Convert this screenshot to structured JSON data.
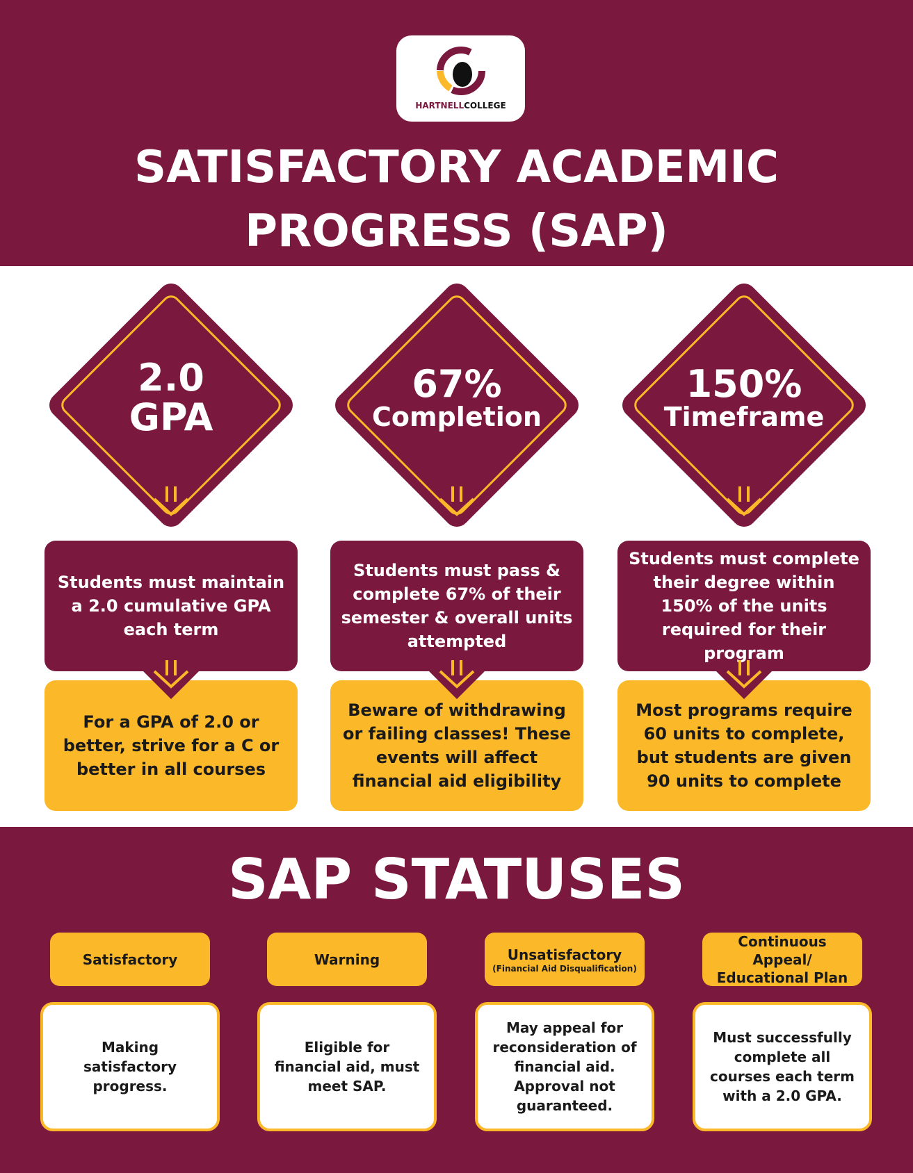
{
  "header": {
    "logo": {
      "name_first": "HARTNELL",
      "name_second": "COLLEGE"
    },
    "title_lines": [
      "SATISFACTORY ACADEMIC",
      "PROGRESS (SAP)"
    ]
  },
  "pillars": [
    {
      "headline": "2.0",
      "subhead": "GPA",
      "description": "Students must maintain a 2.0 cumulative GPA each term",
      "tip": "For a GPA of 2.0 or better, strive for a C or better in all courses"
    },
    {
      "headline": "67%",
      "subhead": "Completion",
      "description": "Students must pass & complete 67% of their semester & overall units attempted",
      "tip": "Beware of withdrawing or failing classes! These events will affect financial aid eligibility"
    },
    {
      "headline": "150%",
      "subhead": "Timeframe",
      "description": "Students must complete their degree within 150% of the units required for their program",
      "tip": "Most programs require 60 units to complete, but students are given 90 units to complete"
    }
  ],
  "statuses": {
    "title": "SAP STATUSES",
    "items": [
      {
        "label": "Satisfactory",
        "description": "Making satisfactory progress."
      },
      {
        "label": "Warning",
        "description": "Eligible for financial aid, must meet SAP."
      },
      {
        "label": "Unsatisfactory",
        "sublabel": "(Financial Aid Disqualification)",
        "description": "May appeal for reconsideration of financial aid. Approval not guaranteed."
      },
      {
        "label": "Continuous Appeal/ Educational Plan",
        "description": "Must successfully complete all courses each term with a 2.0 GPA."
      }
    ]
  }
}
